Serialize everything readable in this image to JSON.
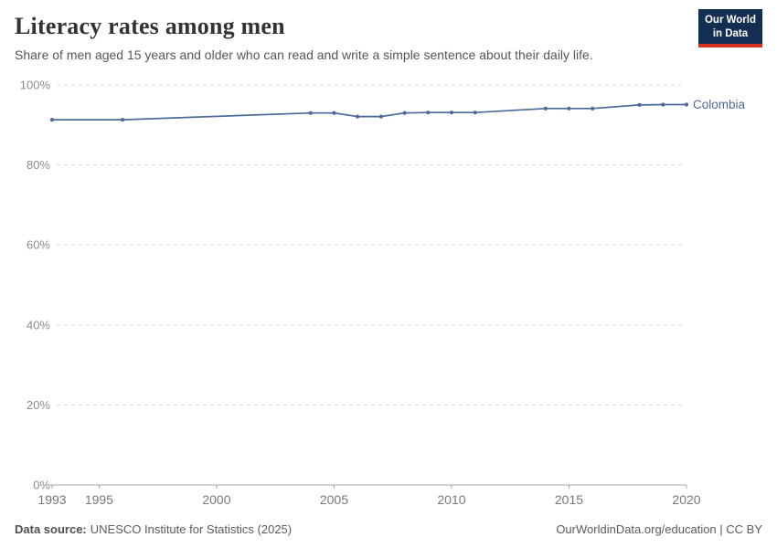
{
  "header": {
    "title": "Literacy rates among men",
    "subtitle": "Share of men aged 15 years and older who can read and write a simple sentence about their daily life.",
    "logo": {
      "line1": "Our World",
      "line2": "in Data",
      "bg_color": "#142e52",
      "accent_color": "#d63322"
    }
  },
  "chart_data": {
    "type": "line",
    "title": "Literacy rates among men",
    "x": [
      1993,
      1996,
      2004,
      2005,
      2006,
      2007,
      2008,
      2009,
      2010,
      2011,
      2014,
      2015,
      2016,
      2018,
      2019,
      2020
    ],
    "series": [
      {
        "name": "Colombia",
        "color": "#4b6a9b",
        "values": [
          91.3,
          91.3,
          93.0,
          93.0,
          92.1,
          92.1,
          93.0,
          93.1,
          93.1,
          93.1,
          94.1,
          94.1,
          94.1,
          95.0,
          95.1,
          95.1
        ]
      }
    ],
    "xlabel": "",
    "ylabel": "",
    "xlim": [
      1993,
      2020
    ],
    "ylim": [
      0,
      100
    ],
    "x_ticks": [
      1993,
      1995,
      2000,
      2005,
      2010,
      2015,
      2020
    ],
    "y_ticks": [
      0,
      20,
      40,
      60,
      80,
      100
    ],
    "y_tick_suffix": "%",
    "grid": "horizontal-dashed",
    "legend": "end-of-line-label"
  },
  "footer": {
    "source_label": "Data source:",
    "source_text": "UNESCO Institute for Statistics (2025)",
    "right_text": "OurWorldinData.org/education | CC BY"
  }
}
